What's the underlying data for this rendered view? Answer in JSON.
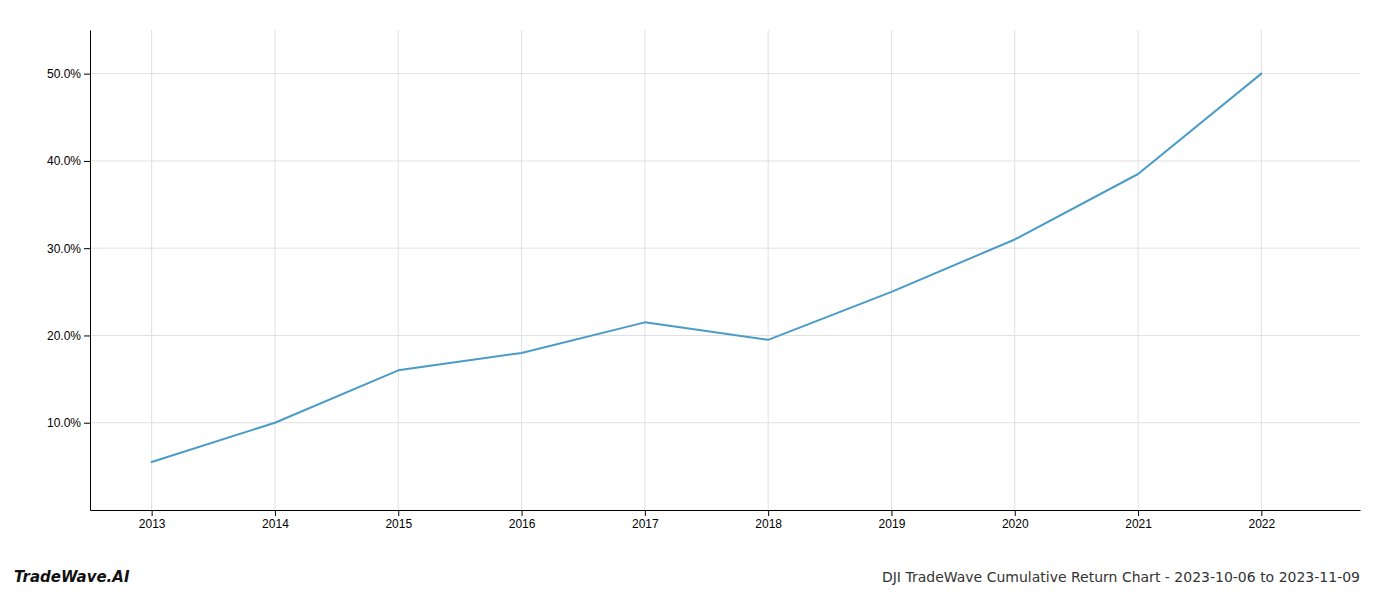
{
  "chart_data": {
    "type": "line",
    "title": "DJI TradeWave Cumulative Return Chart - 2023-10-06 to 2023-11-09",
    "annotations": [
      "TradeWave.AI"
    ],
    "x": [
      2013,
      2014,
      2015,
      2016,
      2017,
      2018,
      2019,
      2020,
      2021,
      2022
    ],
    "values": [
      5.5,
      10.0,
      16.0,
      18.0,
      21.5,
      19.5,
      25.0,
      31.0,
      38.5,
      50.0
    ],
    "color": "#4a9cc7",
    "xlim": [
      2012.5,
      2022.8
    ],
    "ylim": [
      0,
      55
    ],
    "xticks": [
      2013,
      2014,
      2015,
      2016,
      2017,
      2018,
      2019,
      2020,
      2021,
      2022
    ],
    "yticks": [
      {
        "value": 10.0,
        "label": "10.0%"
      },
      {
        "value": 20.0,
        "label": "20.0%"
      },
      {
        "value": 30.0,
        "label": "30.0%"
      },
      {
        "value": 40.0,
        "label": "40.0%"
      },
      {
        "value": 50.0,
        "label": "50.0%"
      }
    ],
    "grid": true
  }
}
